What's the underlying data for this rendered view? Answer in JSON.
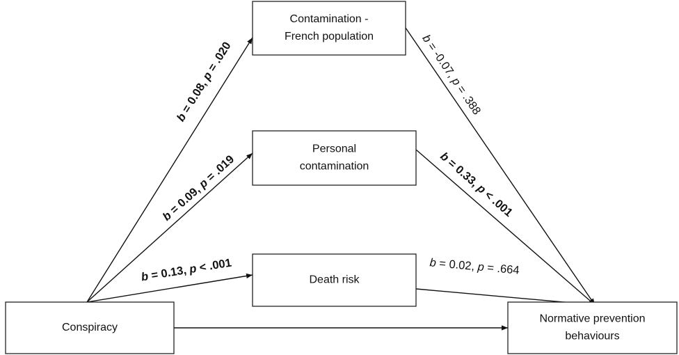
{
  "nodes": [
    {
      "label": [
        "Conspiracy"
      ]
    },
    {
      "label": [
        "Contamination -",
        "French population"
      ]
    },
    {
      "label": [
        "Personal",
        "contamination"
      ]
    },
    {
      "label": [
        "Death risk"
      ]
    },
    {
      "label": [
        "Normative prevention",
        "behaviours"
      ]
    }
  ],
  "edges": [
    {
      "label": [
        "b",
        " = 0.08, ",
        "p",
        " = .020"
      ],
      "bold": true
    },
    {
      "label": [
        "b",
        " = 0.09, ",
        "p",
        " = .019"
      ],
      "bold": true
    },
    {
      "label": [
        "b",
        " = 0.13, ",
        "p",
        " < .001"
      ],
      "bold": true
    },
    {
      "label": [
        "b",
        " = -0.07, ",
        "p",
        " = .388"
      ],
      "bold": false
    },
    {
      "label": [
        "b",
        " = 0.33, ",
        "p",
        " < .001"
      ],
      "bold": true
    },
    {
      "label": [
        "b",
        " = 0.02, ",
        "p",
        " = .664"
      ],
      "bold": false
    },
    {
      "label": []
    }
  ]
}
